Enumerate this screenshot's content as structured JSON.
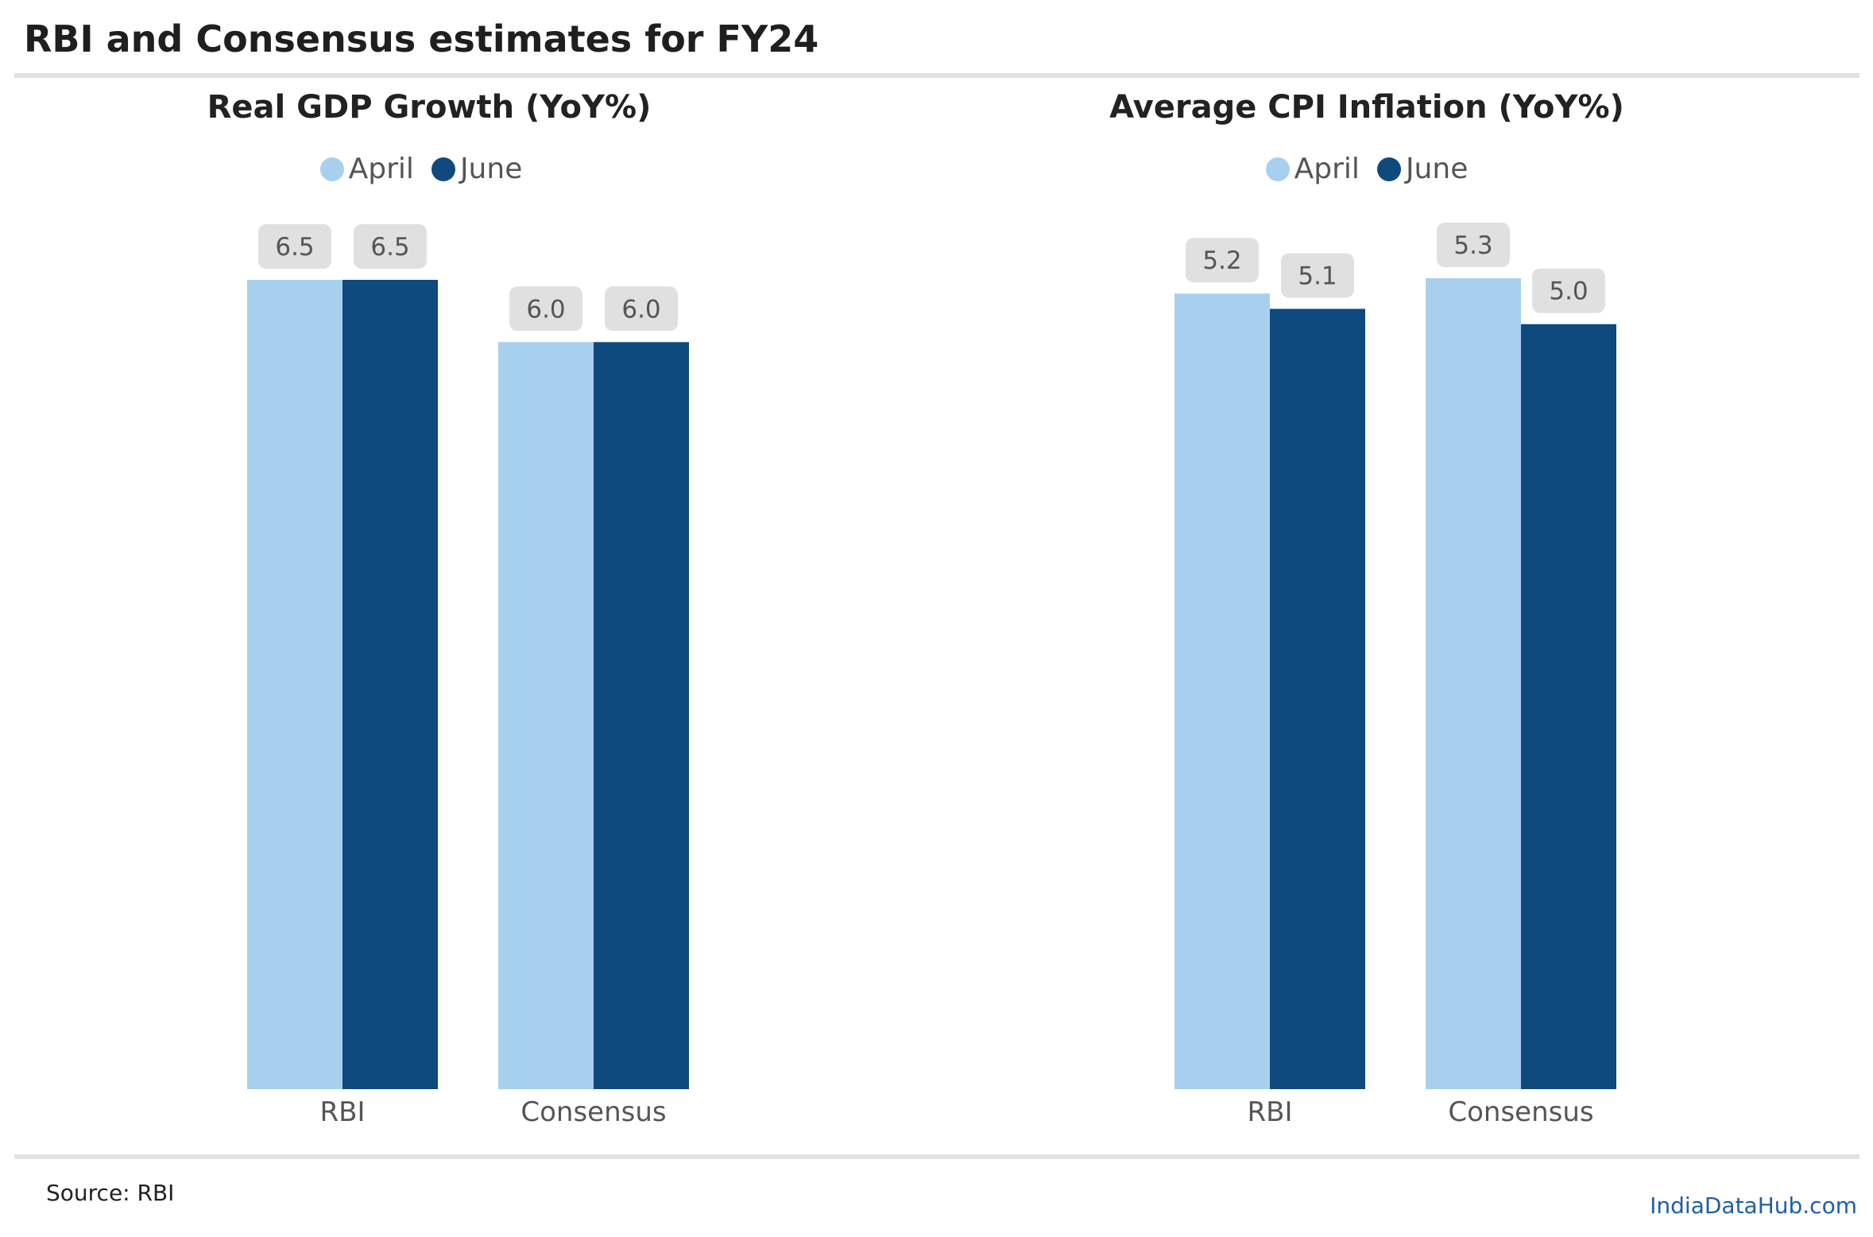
{
  "page": {
    "title": "RBI and Consensus estimates for FY24",
    "source": "Source: RBI",
    "brand": "IndiaDataHub.com"
  },
  "colors": {
    "april": "#a7d0ef",
    "june": "#0f4a7f",
    "label_box": "#e0e0e0",
    "label_text": "#555555",
    "axis_text": "#555555"
  },
  "chart_data": [
    {
      "type": "bar",
      "title": "Real GDP Growth (YoY%)",
      "categories": [
        "RBI",
        "Consensus"
      ],
      "series": [
        {
          "name": "April",
          "values": [
            6.5,
            6.0
          ]
        },
        {
          "name": "June",
          "values": [
            6.5,
            6.0
          ]
        }
      ],
      "value_labels": [
        [
          "6.5",
          "6.0"
        ],
        [
          "6.5",
          "6.0"
        ]
      ],
      "ylim": [
        0,
        6.5
      ],
      "grid": false,
      "legend": "top-center"
    },
    {
      "type": "bar",
      "title": "Average CPI Inflation (YoY%)",
      "categories": [
        "RBI",
        "Consensus"
      ],
      "series": [
        {
          "name": "April",
          "values": [
            5.2,
            5.3
          ]
        },
        {
          "name": "June",
          "values": [
            5.1,
            5.0
          ]
        }
      ],
      "value_labels": [
        [
          "5.2",
          "5.3"
        ],
        [
          "5.1",
          "5.0"
        ]
      ],
      "ylim": [
        0,
        5.3
      ],
      "grid": false,
      "legend": "top-center"
    }
  ]
}
